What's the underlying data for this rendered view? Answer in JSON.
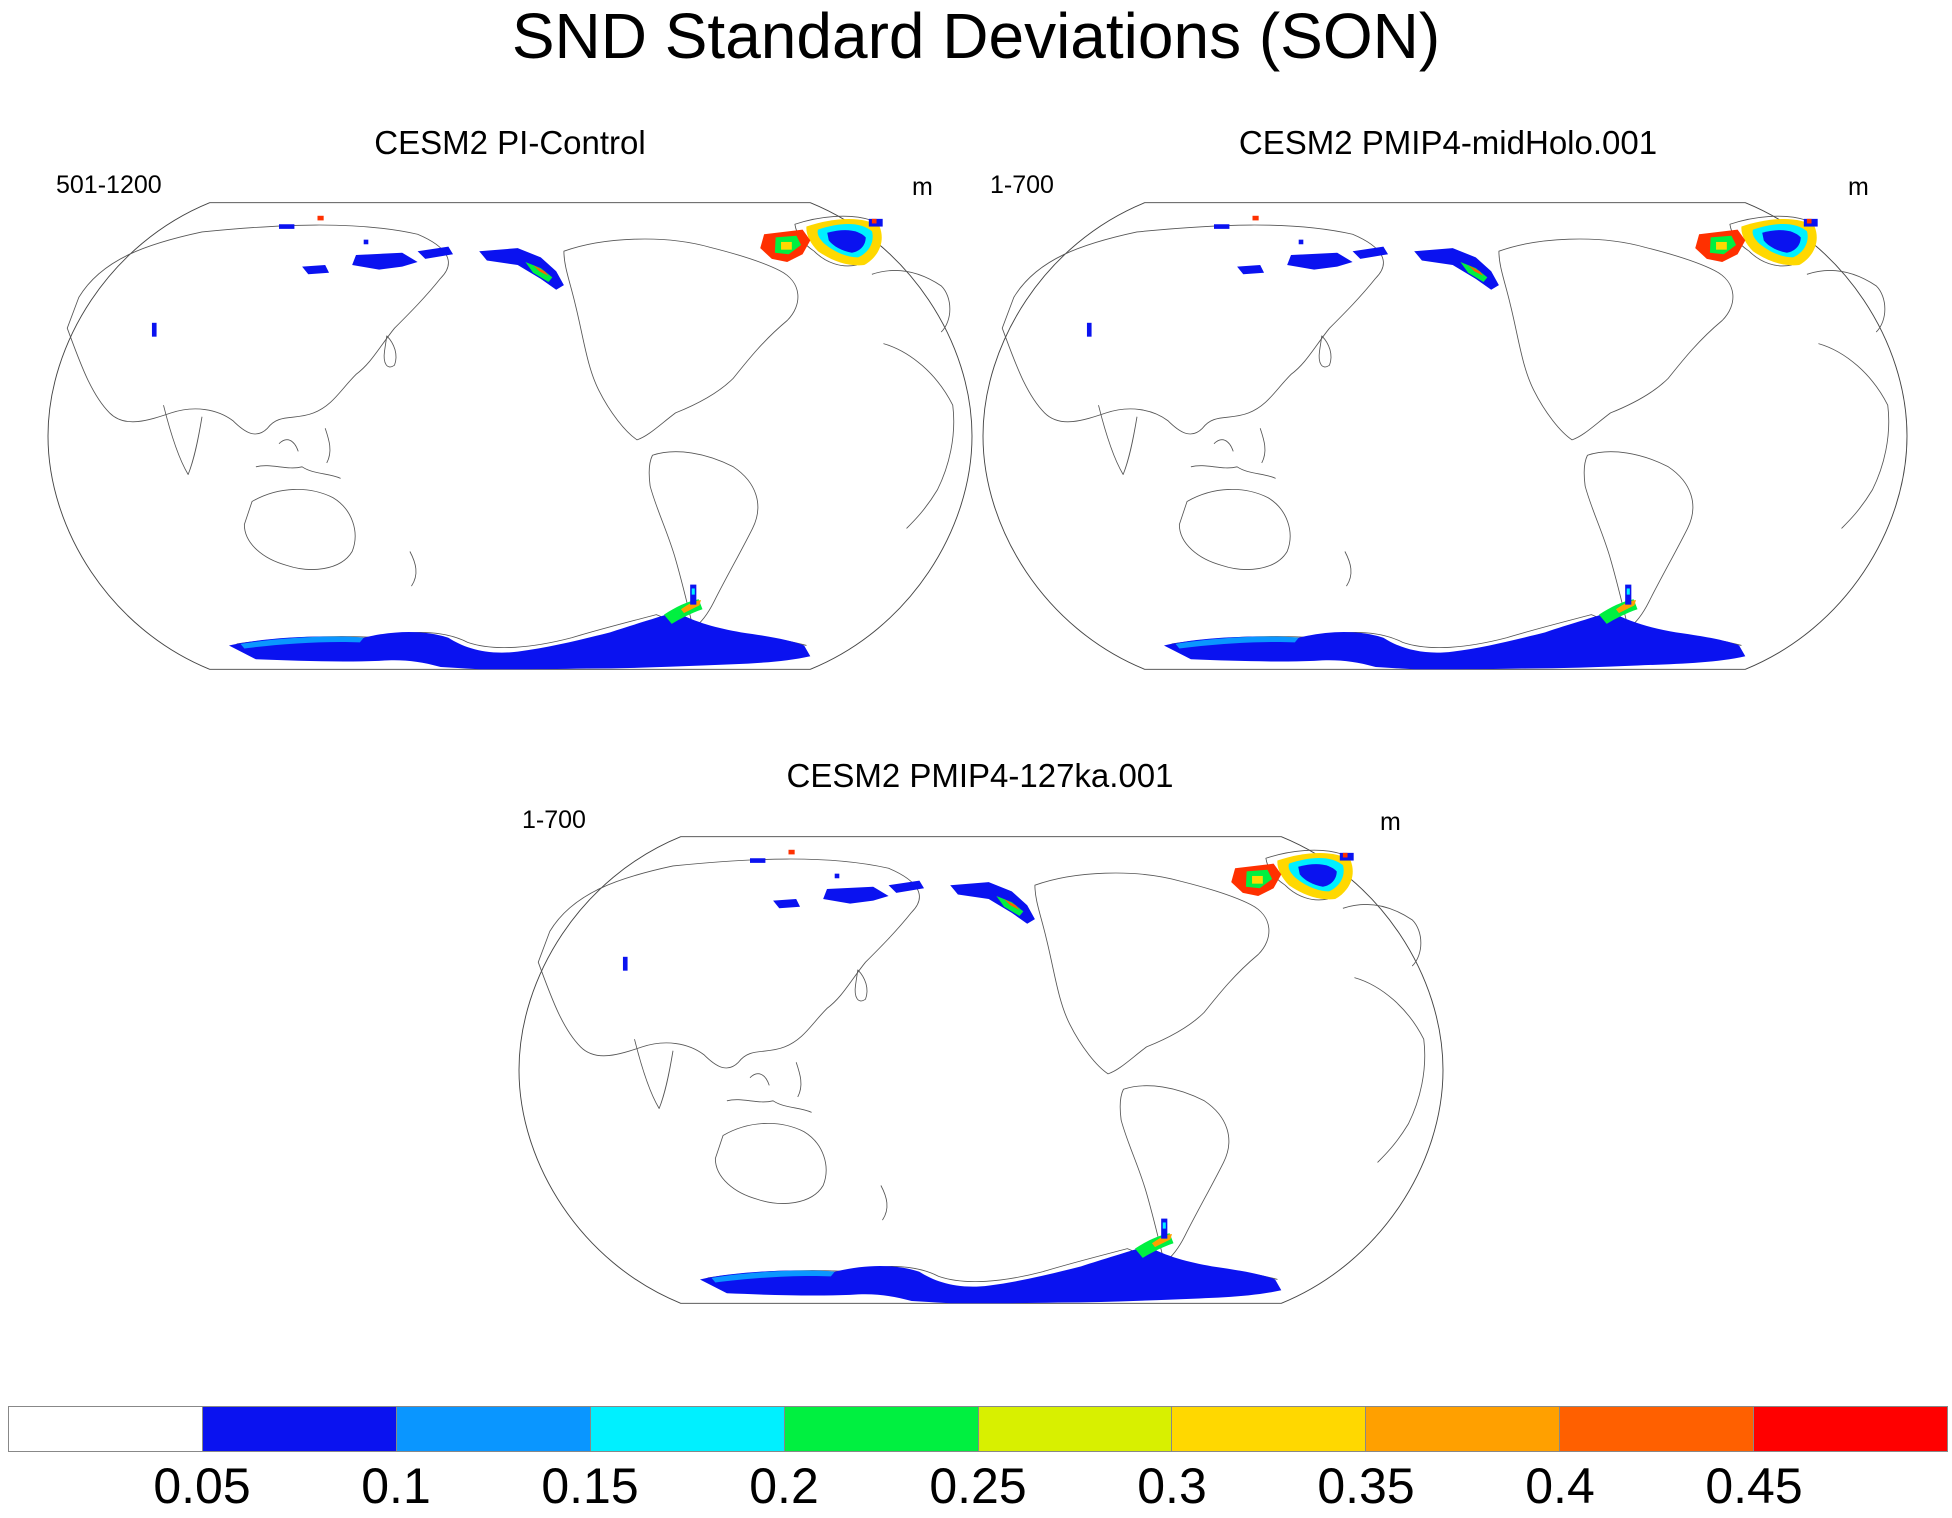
{
  "title": "SND Standard Deviations (SON)",
  "panels": [
    {
      "title": "CESM2 PI-Control",
      "years": "501-1200",
      "units": "m"
    },
    {
      "title": "CESM2 PMIP4-midHolo.001",
      "years": "1-700",
      "units": "m"
    },
    {
      "title": "CESM2 PMIP4-127ka.001",
      "years": "1-700",
      "units": "m"
    }
  ],
  "colorbar": {
    "labels": [
      "0.05",
      "0.1",
      "0.15",
      "0.2",
      "0.25",
      "0.3",
      "0.35",
      "0.4",
      "0.45"
    ],
    "colors": [
      "#ffffff",
      "#0a12f0",
      "#0a96ff",
      "#00f0ff",
      "#00f040",
      "#d8f000",
      "#ffd800",
      "#ffa000",
      "#ff6000",
      "#ff0000"
    ]
  }
}
